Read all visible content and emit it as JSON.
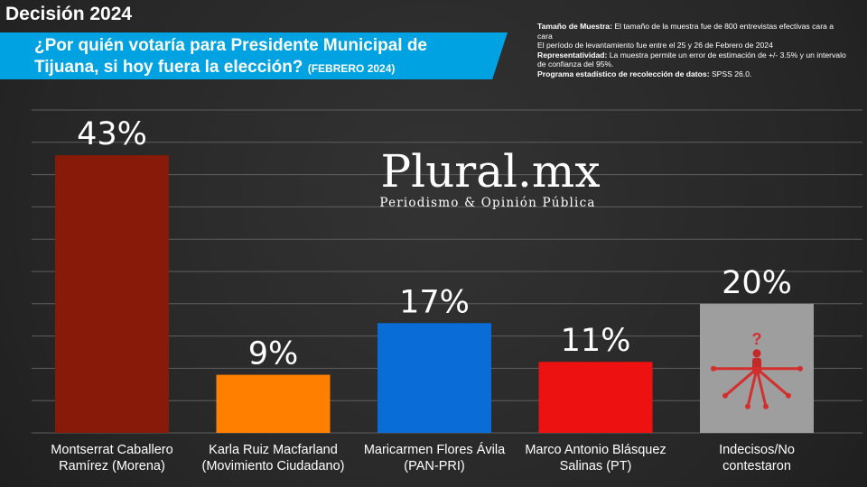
{
  "header": {
    "title": "Decisión 2024",
    "question": "¿Por quién votaría para Presidente Municipal de Tijuana, si hoy fuera la elección?",
    "question_date": "(FEBRERO 2024)"
  },
  "methodology": {
    "sample_label": "Tamaño de Muestra:",
    "sample_text": "El tamaño de la muestra fue de 800 entrevistas efectivas cara a cara",
    "period_text": "El período de levantamiento fue entre el 25 y 26 de Febrero de 2024",
    "representativity_label": "Representatividad:",
    "representativity_text": "La muestra permite un error de estimación de +/- 3.5% y un intervalo de confianza del 95%.",
    "program_label": "Programa estadístico de recolección de datos:",
    "program_text": "SPSS 26.0."
  },
  "watermark": {
    "title": "Plural.mx",
    "subtitle": "Periodismo & Opinión Pública"
  },
  "colors": {
    "bar_morena": "#871a08",
    "bar_mc": "#ff8000",
    "bar_panpri": "#0a6cd6",
    "bar_pt": "#ee1111",
    "bar_undecided": "#9e9e9e",
    "accent": "#00a2e2"
  },
  "chart_data": {
    "type": "bar",
    "categories": [
      "Montserrat Caballero Ramírez (Morena)",
      "Karla Ruiz Macfarland (Movimiento Ciudadano)",
      "Maricarmen Flores Ávila (PAN-PRI)",
      "Marco Antonio Blásquez Salinas (PT)",
      "Indecisos/No contestaron"
    ],
    "category_lines": [
      [
        "Montserrat Caballero",
        "Ramírez (Morena)"
      ],
      [
        "Karla Ruiz Macfarland",
        "(Movimiento Ciudadano)"
      ],
      [
        "Maricarmen Flores Ávila",
        "(PAN-PRI)"
      ],
      [
        "Marco Antonio Blásquez",
        "Salinas (PT)"
      ],
      [
        "Indecisos/No",
        "contestaron"
      ]
    ],
    "values": [
      43,
      9,
      17,
      11,
      20
    ],
    "value_labels": [
      "43%",
      "9%",
      "17%",
      "11%",
      "20%"
    ],
    "bar_colors": [
      "#871a08",
      "#ff8000",
      "#0a6cd6",
      "#ee1111",
      "#9e9e9e"
    ],
    "ylim": [
      0,
      50
    ],
    "grid": true,
    "legend": "none",
    "title": "",
    "xlabel": "",
    "ylabel": ""
  }
}
